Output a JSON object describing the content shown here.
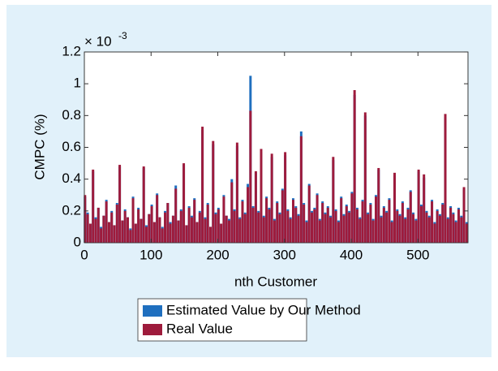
{
  "chart_data": {
    "type": "bar",
    "y_label": "CMPC (%)",
    "x_label": "nth Customer",
    "y_multiplier_base": "× 10",
    "y_multiplier_exponent": "-3",
    "xlim": [
      0,
      575
    ],
    "xticks": [
      0,
      100,
      200,
      300,
      400,
      500
    ],
    "ylim": [
      0,
      1.2
    ],
    "yticks": [
      0,
      0.2,
      0.4,
      0.6,
      0.8,
      1,
      1.2
    ],
    "x": [
      1,
      5,
      9,
      13,
      17,
      21,
      25,
      29,
      33,
      37,
      41,
      45,
      49,
      53,
      57,
      61,
      65,
      69,
      73,
      77,
      81,
      85,
      89,
      93,
      97,
      101,
      105,
      109,
      113,
      117,
      121,
      125,
      129,
      133,
      137,
      141,
      145,
      149,
      153,
      157,
      161,
      165,
      169,
      173,
      177,
      181,
      185,
      189,
      193,
      197,
      201,
      205,
      209,
      213,
      217,
      221,
      225,
      229,
      233,
      237,
      241,
      245,
      249,
      253,
      257,
      261,
      265,
      269,
      273,
      277,
      281,
      285,
      289,
      293,
      297,
      301,
      305,
      309,
      313,
      317,
      321,
      325,
      329,
      333,
      337,
      341,
      345,
      349,
      353,
      357,
      361,
      365,
      369,
      373,
      377,
      381,
      385,
      389,
      393,
      397,
      401,
      405,
      409,
      413,
      417,
      421,
      425,
      429,
      433,
      437,
      441,
      445,
      449,
      453,
      457,
      461,
      465,
      469,
      473,
      477,
      481,
      485,
      489,
      493,
      497,
      501,
      505,
      509,
      513,
      517,
      521,
      525,
      529,
      533,
      537,
      541,
      545,
      549,
      553,
      557,
      561,
      565,
      569,
      573
    ],
    "series": [
      {
        "name": "Estimated Value by Our Method",
        "color": "#1f6fbf",
        "values": [
          0.29,
          0.19,
          0.12,
          0.45,
          0.16,
          0.22,
          0.1,
          0.17,
          0.27,
          0.13,
          0.2,
          0.11,
          0.25,
          0.48,
          0.14,
          0.21,
          0.16,
          0.09,
          0.29,
          0.12,
          0.22,
          0.15,
          0.47,
          0.11,
          0.18,
          0.24,
          0.13,
          0.31,
          0.16,
          0.1,
          0.2,
          0.25,
          0.13,
          0.17,
          0.36,
          0.14,
          0.21,
          0.49,
          0.11,
          0.23,
          0.17,
          0.28,
          0.13,
          0.2,
          0.71,
          0.16,
          0.25,
          0.1,
          0.62,
          0.19,
          0.22,
          0.12,
          0.3,
          0.17,
          0.15,
          0.4,
          0.21,
          0.61,
          0.16,
          0.27,
          0.19,
          0.37,
          1.05,
          0.23,
          0.44,
          0.2,
          0.57,
          0.17,
          0.29,
          0.22,
          0.54,
          0.15,
          0.26,
          0.19,
          0.34,
          0.55,
          0.21,
          0.16,
          0.28,
          0.23,
          0.18,
          0.7,
          0.25,
          0.14,
          0.37,
          0.2,
          0.22,
          0.31,
          0.15,
          0.26,
          0.19,
          0.23,
          0.17,
          0.52,
          0.21,
          0.14,
          0.29,
          0.18,
          0.24,
          0.2,
          0.32,
          0.93,
          0.22,
          0.16,
          0.27,
          0.8,
          0.19,
          0.25,
          0.15,
          0.3,
          0.46,
          0.17,
          0.23,
          0.2,
          0.28,
          0.14,
          0.42,
          0.21,
          0.18,
          0.26,
          0.16,
          0.22,
          0.33,
          0.19,
          0.15,
          0.45,
          0.24,
          0.41,
          0.2,
          0.17,
          0.27,
          0.13,
          0.21,
          0.18,
          0.25,
          0.79,
          0.16,
          0.23,
          0.19,
          0.14,
          0.22,
          0.17,
          0.34,
          0.13
        ]
      },
      {
        "name": "Real Value",
        "color": "#9e1b3c",
        "values": [
          0.3,
          0.18,
          0.12,
          0.46,
          0.15,
          0.22,
          0.09,
          0.17,
          0.26,
          0.13,
          0.19,
          0.11,
          0.24,
          0.49,
          0.14,
          0.2,
          0.16,
          0.08,
          0.28,
          0.12,
          0.21,
          0.15,
          0.48,
          0.1,
          0.18,
          0.23,
          0.13,
          0.3,
          0.16,
          0.09,
          0.19,
          0.25,
          0.12,
          0.17,
          0.34,
          0.14,
          0.2,
          0.5,
          0.11,
          0.22,
          0.16,
          0.27,
          0.13,
          0.19,
          0.73,
          0.15,
          0.24,
          0.1,
          0.64,
          0.18,
          0.21,
          0.12,
          0.29,
          0.17,
          0.14,
          0.38,
          0.2,
          0.63,
          0.15,
          0.26,
          0.18,
          0.35,
          0.83,
          0.22,
          0.45,
          0.19,
          0.59,
          0.16,
          0.28,
          0.21,
          0.56,
          0.14,
          0.25,
          0.18,
          0.33,
          0.57,
          0.2,
          0.15,
          0.27,
          0.22,
          0.17,
          0.67,
          0.24,
          0.13,
          0.36,
          0.19,
          0.21,
          0.3,
          0.14,
          0.25,
          0.18,
          0.22,
          0.16,
          0.54,
          0.2,
          0.13,
          0.28,
          0.17,
          0.23,
          0.19,
          0.31,
          0.96,
          0.21,
          0.15,
          0.26,
          0.82,
          0.18,
          0.24,
          0.14,
          0.29,
          0.47,
          0.16,
          0.22,
          0.19,
          0.27,
          0.13,
          0.44,
          0.2,
          0.17,
          0.25,
          0.15,
          0.21,
          0.32,
          0.18,
          0.14,
          0.46,
          0.23,
          0.43,
          0.19,
          0.16,
          0.26,
          0.12,
          0.2,
          0.17,
          0.24,
          0.81,
          0.15,
          0.22,
          0.18,
          0.13,
          0.21,
          0.16,
          0.35,
          0.12
        ]
      }
    ]
  }
}
